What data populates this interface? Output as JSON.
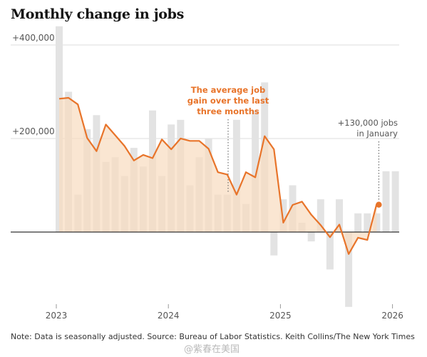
{
  "title": "Monthly change in jobs",
  "note": "Note: Data is seasonally adjusted.  Source: Bureau of Labor Statistics.  Keith Collins/The New York Times",
  "watermark": "@紫春在美国",
  "chart_data": {
    "type": "bar",
    "title": "Monthly change in jobs",
    "ylim": [
      -180000,
      460000
    ],
    "yticks": [
      {
        "value": 400000,
        "label": "+400,000"
      },
      {
        "value": 200000,
        "label": "+200,000"
      }
    ],
    "xticks": [
      {
        "index": 0,
        "label": "2023"
      },
      {
        "index": 12,
        "label": "2024"
      },
      {
        "index": 24,
        "label": "2025"
      },
      {
        "index": 36,
        "label": "2026"
      }
    ],
    "grid": true,
    "colors": {
      "bar": "#e3e3e3",
      "line": "#e8742a",
      "fill": "#f8dcc0",
      "zero": "#333333"
    },
    "series": [
      {
        "type": "bar",
        "values": [
          440000,
          300000,
          80000,
          220000,
          250000,
          150000,
          160000,
          120000,
          180000,
          140000,
          260000,
          120000,
          230000,
          240000,
          100000,
          160000,
          200000,
          80000,
          80000,
          240000,
          60000,
          260000,
          320000,
          -50000,
          70000,
          100000,
          20000,
          -20000,
          70000,
          -80000,
          70000,
          -160000,
          40000,
          40000,
          40000,
          130000,
          130000
        ]
      },
      {
        "type": "line",
        "values": [
          285000,
          287000,
          273000,
          201000,
          173000,
          230000,
          207000,
          184000,
          153000,
          165000,
          158000,
          198000,
          177000,
          200000,
          195000,
          195000,
          178000,
          128000,
          123000,
          80000,
          128000,
          117000,
          205000,
          177000,
          20000,
          58000,
          65000,
          37000,
          15000,
          -11000,
          16000,
          -47000,
          -12000,
          -17000,
          60000
        ]
      }
    ],
    "annotations": [
      {
        "lines": [
          "The average job",
          "gain over the last",
          "three months"
        ],
        "target_index": 19
      },
      {
        "lines": [
          "+130,000 jobs",
          "in January"
        ],
        "target_index": 36
      }
    ]
  }
}
